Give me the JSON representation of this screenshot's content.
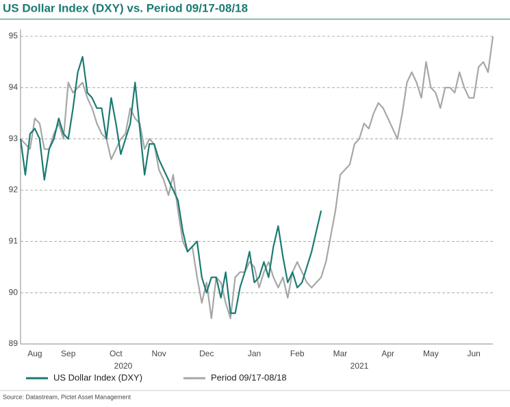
{
  "chart_data": {
    "type": "line",
    "title": "US Dollar Index (DXY) vs. Period 09/17-08/18",
    "source": "Source: Datastream, Pictet Asset Management",
    "year_labels": [
      "2020",
      "2021"
    ],
    "categories": [
      null,
      null,
      null,
      "Aug",
      null,
      null,
      null,
      null,
      null,
      null,
      "Sep",
      null,
      null,
      null,
      null,
      null,
      null,
      null,
      null,
      null,
      "Oct",
      null,
      null,
      null,
      null,
      null,
      null,
      null,
      null,
      "Nov",
      null,
      null,
      null,
      null,
      null,
      null,
      null,
      null,
      null,
      "Dec",
      null,
      null,
      null,
      null,
      null,
      null,
      null,
      null,
      null,
      "Jan",
      null,
      null,
      null,
      null,
      null,
      null,
      null,
      null,
      "Feb",
      null,
      null,
      null,
      null,
      null,
      null,
      null,
      null,
      "Mar",
      null,
      null,
      null,
      null,
      null,
      null,
      null,
      null,
      null,
      "Apr",
      null,
      null,
      null,
      null,
      null,
      null,
      null,
      null,
      "May",
      null,
      null,
      null,
      null,
      null,
      null,
      null,
      null,
      "Jun",
      null,
      null,
      null,
      null
    ],
    "series": [
      {
        "name": "US Dollar Index (DXY)",
        "color": "#1a7a72",
        "values": [
          93.0,
          92.3,
          93.1,
          93.2,
          93.0,
          92.2,
          92.8,
          93.0,
          93.4,
          93.1,
          93.0,
          93.6,
          94.3,
          94.6,
          93.9,
          93.8,
          93.6,
          93.6,
          93.0,
          93.8,
          93.3,
          92.7,
          93.0,
          93.3,
          94.1,
          93.2,
          92.3,
          92.9,
          92.9,
          92.6,
          92.4,
          92.2,
          92.0,
          91.8,
          91.2,
          90.8,
          90.9,
          91.0,
          90.3,
          90.0,
          90.3,
          90.3,
          89.9,
          90.4,
          89.6,
          89.6,
          90.1,
          90.4,
          90.8,
          90.2,
          90.3,
          90.6,
          90.3,
          90.9,
          91.3,
          90.7,
          90.2,
          90.4,
          90.1,
          90.2,
          90.5,
          90.8,
          91.2,
          91.6,
          null,
          null,
          null,
          null,
          null,
          null,
          null,
          null,
          null,
          null,
          null,
          null,
          null,
          null,
          null,
          null,
          null,
          null,
          null,
          null,
          null,
          null,
          null,
          null,
          null,
          null,
          null,
          null,
          null,
          null,
          null,
          null,
          null,
          null,
          null,
          null
        ]
      },
      {
        "name": "Period 09/17-08/18",
        "color": "#a6a6a6",
        "values": [
          93.0,
          92.9,
          92.8,
          93.4,
          93.3,
          92.8,
          92.8,
          93.1,
          93.3,
          93.0,
          94.1,
          93.9,
          94.0,
          94.1,
          93.8,
          93.6,
          93.3,
          93.1,
          93.0,
          92.6,
          92.8,
          93.0,
          93.1,
          93.6,
          93.4,
          93.3,
          92.8,
          93.0,
          92.9,
          92.4,
          92.2,
          91.9,
          92.3,
          91.6,
          91.0,
          90.8,
          90.9,
          90.3,
          89.8,
          90.2,
          89.5,
          90.3,
          90.2,
          89.8,
          89.5,
          90.3,
          90.4,
          90.4,
          90.6,
          90.5,
          90.1,
          90.4,
          90.6,
          90.3,
          90.1,
          90.3,
          89.9,
          90.4,
          90.6,
          90.4,
          90.2,
          90.1,
          90.2,
          90.3,
          90.6,
          91.1,
          91.6,
          92.3,
          92.4,
          92.5,
          92.9,
          93.0,
          93.3,
          93.2,
          93.5,
          93.7,
          93.6,
          93.4,
          93.2,
          93.0,
          93.5,
          94.1,
          94.3,
          94.1,
          93.8,
          94.5,
          94.0,
          93.9,
          93.6,
          94.0,
          94.0,
          93.9,
          94.3,
          94.0,
          93.8,
          93.8,
          94.4,
          94.5,
          94.3,
          95.0
        ]
      }
    ],
    "ylim": [
      89,
      95
    ],
    "yticks": [
      89,
      90,
      91,
      92,
      93,
      94,
      95
    ],
    "grid": true
  }
}
